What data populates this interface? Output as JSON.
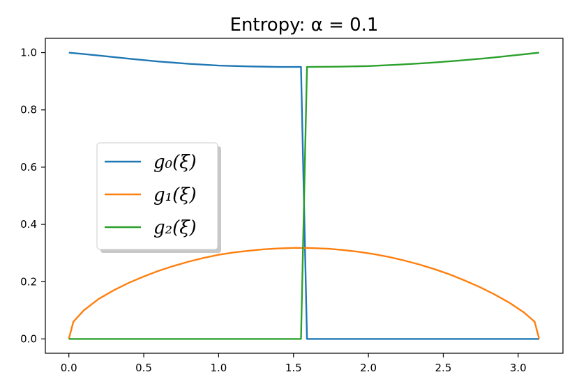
{
  "chart_data": {
    "type": "line",
    "title": "Entropy: α =  0.1",
    "xlabel": "",
    "ylabel": "",
    "xlim": [
      -0.157,
      3.299
    ],
    "ylim": [
      -0.05,
      1.05
    ],
    "x_ticks": [
      "0.0",
      "0.5",
      "1.0",
      "1.5",
      "2.0",
      "2.5",
      "3.0"
    ],
    "y_ticks": [
      "0.0",
      "0.2",
      "0.4",
      "0.6",
      "0.8",
      "1.0"
    ],
    "grid": false,
    "legend_position": "center-left",
    "series": [
      {
        "name": "g₀(ξ)",
        "color": "#1f77b4",
        "x": [
          0.0,
          0.2,
          0.4,
          0.6,
          0.8,
          1.0,
          1.2,
          1.4,
          1.55,
          1.59,
          1.8,
          2.0,
          2.5,
          3.14
        ],
        "y": [
          1.0,
          0.99,
          0.979,
          0.969,
          0.961,
          0.955,
          0.952,
          0.95,
          0.95,
          0.0,
          0.0,
          0.0,
          0.0,
          0.0
        ]
      },
      {
        "name": "g₁(ξ)",
        "color": "#ff7f0e",
        "x": [
          0.0,
          0.03,
          0.1,
          0.2,
          0.3,
          0.4,
          0.5,
          0.6,
          0.7,
          0.8,
          0.9,
          1.0,
          1.1,
          1.2,
          1.3,
          1.4,
          1.5,
          1.571,
          1.64,
          1.74,
          1.84,
          1.94,
          2.04,
          2.14,
          2.24,
          2.34,
          2.44,
          2.54,
          2.64,
          2.74,
          2.84,
          2.94,
          3.04,
          3.11,
          3.14
        ],
        "y": [
          0.0,
          0.06,
          0.1,
          0.14,
          0.17,
          0.196,
          0.218,
          0.238,
          0.255,
          0.27,
          0.283,
          0.294,
          0.302,
          0.308,
          0.313,
          0.316,
          0.318,
          0.318,
          0.317,
          0.315,
          0.31,
          0.304,
          0.296,
          0.286,
          0.274,
          0.26,
          0.244,
          0.226,
          0.205,
          0.182,
          0.156,
          0.127,
          0.092,
          0.06,
          0.0
        ]
      },
      {
        "name": "g₂(ξ)",
        "color": "#2ca02c",
        "x": [
          0.0,
          0.5,
          1.0,
          1.55,
          1.59,
          1.8,
          2.0,
          2.2,
          2.4,
          2.6,
          2.8,
          3.0,
          3.14
        ],
        "y": [
          0.0,
          0.0,
          0.0,
          0.0,
          0.95,
          0.951,
          0.953,
          0.958,
          0.964,
          0.972,
          0.981,
          0.992,
          1.0
        ]
      }
    ]
  }
}
